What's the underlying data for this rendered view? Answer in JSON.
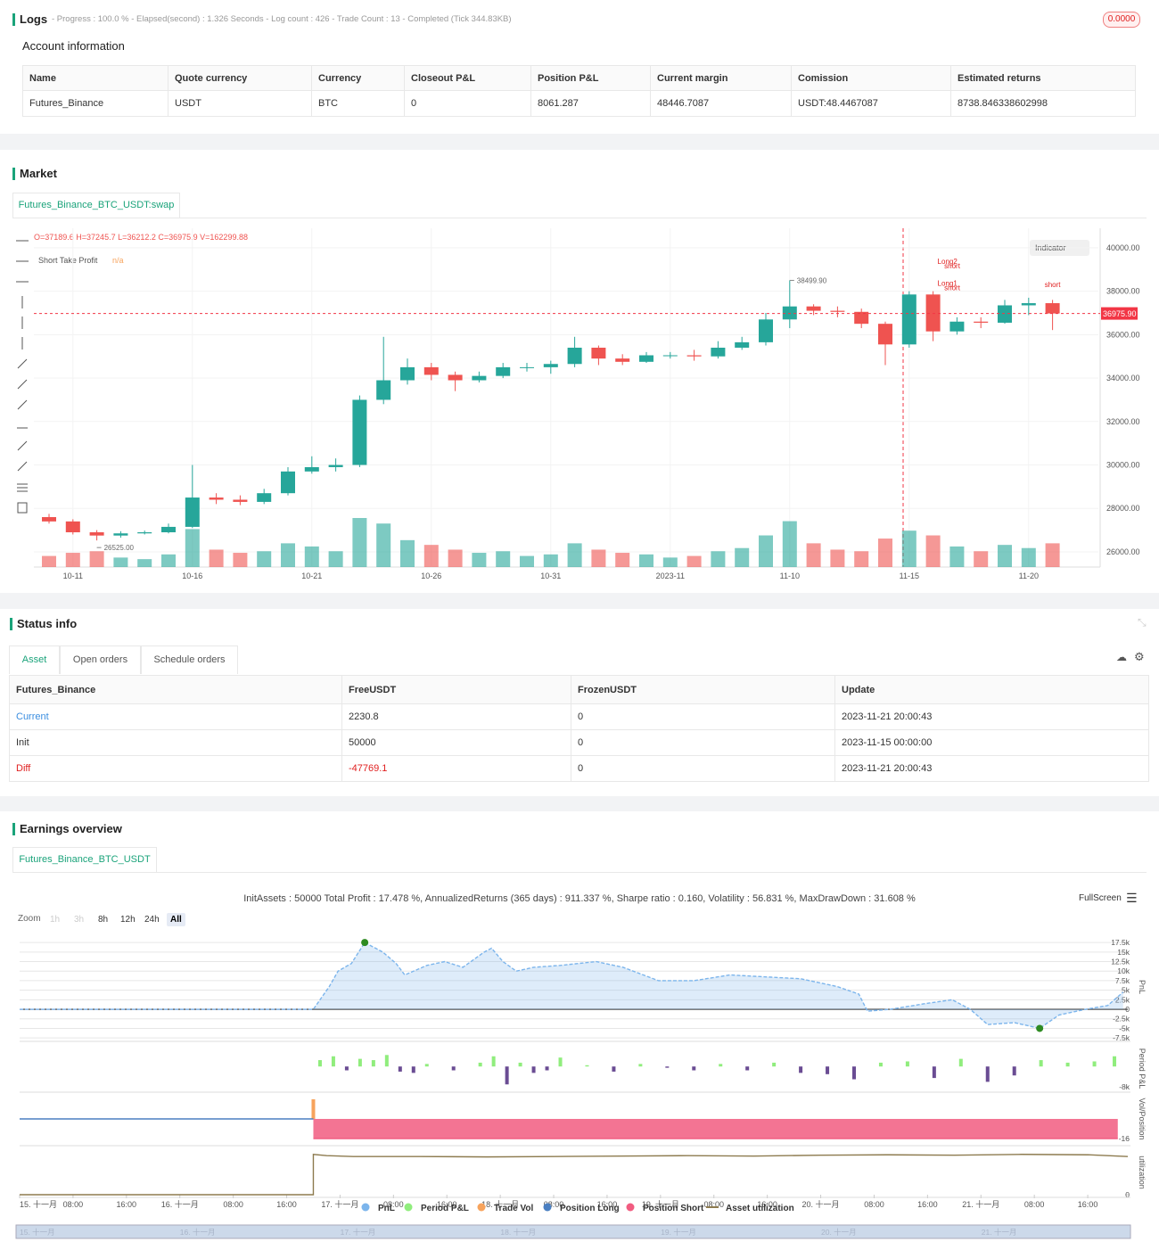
{
  "logs": {
    "title": "Logs",
    "summary": "- Progress : 100.0 % - Elapsed(second) : 1.326  Seconds - Log count : 426 - Trade Count : 13 - Completed (Tick 344.83KB)",
    "badge": "0.0000"
  },
  "account": {
    "title": "Account information",
    "table": {
      "header": [
        "Name",
        "Quote currency",
        "Currency",
        "Closeout P&L",
        "Position P&L",
        "Current margin",
        "Comission",
        "Estimated returns"
      ],
      "rows": [
        [
          "Futures_Binance",
          "USDT",
          "BTC",
          "0",
          "8061.287",
          "48446.7087",
          "USDT:48.4467087",
          "8738.846338602998"
        ]
      ]
    }
  },
  "market": {
    "title": "Market",
    "tab": "Futures_Binance_BTC_USDT:swap"
  },
  "status": {
    "title": "Status info",
    "tabs": [
      "Asset",
      "Open orders",
      "Schedule orders"
    ],
    "table": {
      "header": [
        "Futures_Binance",
        "FreeUSDT",
        "FrozenUSDT",
        "Update"
      ],
      "rows": [
        [
          "Current",
          "2230.8",
          "0",
          "2023-11-21 20:00:43"
        ],
        [
          "Init",
          "50000",
          "0",
          "2023-11-15 00:00:00"
        ],
        [
          "Diff",
          "-47769.1",
          "0",
          "2023-11-21 20:00:43"
        ]
      ]
    }
  },
  "earnings": {
    "title": "Earnings overview",
    "tab": "Futures_Binance_BTC_USDT",
    "zoom_label": "Zoom",
    "zoom_buttons": [
      "1h",
      "3h",
      "8h",
      "12h",
      "24h",
      "All"
    ],
    "fullscreen": "FullScreen"
  },
  "chart_data": [
    {
      "type": "candlestick",
      "legend_text": "O=37189.6 H=37245.7 L=36212.2 C=36975.9 V=162299.88",
      "indicator_name": "Short Take Profit",
      "indicator_value": "n/a",
      "indicator_button": "Indicator",
      "categories": [
        null,
        "10-11",
        null,
        null,
        null,
        null,
        "10-16",
        null,
        null,
        null,
        null,
        "10-21",
        null,
        null,
        null,
        null,
        "10-26",
        null,
        null,
        null,
        null,
        "10-31",
        null,
        null,
        null,
        null,
        "2023-11",
        null,
        null,
        null,
        null,
        "11-10",
        null,
        null,
        null,
        null,
        "11-15",
        null,
        null,
        null,
        null,
        "11-20",
        null
      ],
      "open": [
        27600,
        27400,
        26900,
        26750,
        26850,
        26900,
        27150,
        28500,
        28400,
        28300,
        28700,
        29700,
        29900,
        30000,
        33000,
        33900,
        34500,
        34150,
        33900,
        34100,
        34500,
        34500,
        34650,
        35400,
        34900,
        34750,
        35050,
        35050,
        35000,
        35400,
        35650,
        36700,
        37300,
        37100,
        37050,
        36500,
        35550,
        37850,
        36150,
        36600,
        36550,
        37350,
        37450
      ],
      "high": [
        27750,
        27500,
        27000,
        26950,
        26980,
        27300,
        30000,
        28700,
        28600,
        28900,
        29900,
        30400,
        30300,
        33200,
        35900,
        34900,
        34700,
        34300,
        34300,
        34700,
        34700,
        34800,
        35900,
        35500,
        35100,
        35200,
        35200,
        35300,
        35700,
        35900,
        37000,
        38499.9,
        37400,
        37300,
        37200,
        36600,
        38000,
        38000,
        36800,
        36800,
        37600,
        37700,
        37600
      ],
      "low": [
        27300,
        26800,
        26525,
        26650,
        26800,
        26850,
        27100,
        28200,
        28150,
        28200,
        28600,
        29600,
        29700,
        29900,
        32800,
        33700,
        33900,
        33400,
        33800,
        34000,
        34300,
        34200,
        34500,
        34600,
        34600,
        34700,
        34900,
        34800,
        34900,
        35300,
        35500,
        36300,
        36900,
        36800,
        36300,
        34600,
        35400,
        35700,
        36000,
        36300,
        36500,
        36900,
        36212.2
      ],
      "close": [
        27400,
        26900,
        26750,
        26850,
        26900,
        27150,
        28500,
        28400,
        28300,
        28700,
        29700,
        29900,
        30000,
        33000,
        33900,
        34500,
        34150,
        33900,
        34100,
        34500,
        34500,
        34650,
        35400,
        34900,
        34750,
        35050,
        35050,
        35000,
        35400,
        35650,
        36700,
        37300,
        37100,
        37050,
        36500,
        35550,
        37850,
        36150,
        36600,
        36550,
        37350,
        37450,
        36975.9
      ],
      "volume": [
        14,
        18,
        20,
        12,
        10,
        16,
        48,
        22,
        18,
        20,
        30,
        26,
        20,
        62,
        55,
        34,
        28,
        22,
        18,
        20,
        14,
        16,
        30,
        22,
        18,
        16,
        12,
        14,
        20,
        24,
        40,
        58,
        30,
        22,
        20,
        36,
        46,
        40,
        26,
        20,
        28,
        24,
        30
      ],
      "up_color": "#26a69a",
      "down_color": "#ef5350",
      "ylim": [
        25300,
        40900
      ],
      "yticks": [
        {
          "value": 26000,
          "label": "26000.00"
        },
        {
          "value": 28000,
          "label": "28000.00"
        },
        {
          "value": 30000,
          "label": "30000.00"
        },
        {
          "value": 32000,
          "label": "32000.00"
        },
        {
          "value": 34000,
          "label": "34000.00"
        },
        {
          "value": 36000,
          "label": "36000.00"
        },
        {
          "value": 38000,
          "label": "38000.00"
        },
        {
          "value": 40000,
          "label": "40000.00"
        }
      ],
      "price_line": {
        "value": 36975.9,
        "label": "36975.90",
        "color": "#f23645"
      },
      "annotations": [
        {
          "index": 31,
          "value": 38499.9,
          "label": "38499.90"
        },
        {
          "index": 2,
          "value": 26525,
          "label": "26525.00"
        }
      ],
      "trade_labels": [
        {
          "index": 37.6,
          "value": 39250,
          "label": "Long2"
        },
        {
          "index": 37.8,
          "value": 39050,
          "label": "short"
        },
        {
          "index": 37.6,
          "value": 38250,
          "label": "Long1"
        },
        {
          "index": 37.8,
          "value": 38050,
          "label": "short"
        },
        {
          "index": 42,
          "value": 38200,
          "label": "short"
        }
      ]
    },
    {
      "type": "multi-pane",
      "title": "InitAssets : 50000 Total Profit : 17.478 %, AnnualizedReturns (365 days) : 911.337 %, Sharpe ratio : 0.160, Volatility : 56.831 %, MaxDrawDown : 31.608 %",
      "xlim": [
        0,
        166
      ],
      "xticks": [
        {
          "value": 0,
          "label": "15. 十一月"
        },
        {
          "value": 8,
          "label": "08:00"
        },
        {
          "value": 16,
          "label": "16:00"
        },
        {
          "value": 24,
          "label": "16. 十一月"
        },
        {
          "value": 32,
          "label": "08:00"
        },
        {
          "value": 40,
          "label": "16:00"
        },
        {
          "value": 48,
          "label": "17. 十一月"
        },
        {
          "value": 56,
          "label": "08:00"
        },
        {
          "value": 64,
          "label": "16:00"
        },
        {
          "value": 72,
          "label": "18. 十一月"
        },
        {
          "value": 80,
          "label": "08:00"
        },
        {
          "value": 88,
          "label": "16:00"
        },
        {
          "value": 96,
          "label": "19. 十一月"
        },
        {
          "value": 104,
          "label": "08:00"
        },
        {
          "value": 112,
          "label": "16:00"
        },
        {
          "value": 120,
          "label": "20. 十一月"
        },
        {
          "value": 128,
          "label": "08:00"
        },
        {
          "value": 136,
          "label": "16:00"
        },
        {
          "value": 144,
          "label": "21. 十一月"
        },
        {
          "value": 152,
          "label": "08:00"
        },
        {
          "value": 160,
          "label": "16:00"
        }
      ],
      "ylim": [
        -7700,
        19400
      ],
      "yticks": [
        {
          "value": 17500,
          "label": "17.5k"
        },
        {
          "value": 15000,
          "label": "15k"
        },
        {
          "value": 12500,
          "label": "12.5k"
        },
        {
          "value": 10000,
          "label": "10k"
        },
        {
          "value": 7500,
          "label": "7.5k"
        },
        {
          "value": 5000,
          "label": "5k"
        },
        {
          "value": 2500,
          "label": "2.5k"
        },
        0,
        {
          "value": -2500,
          "label": "-2.5k"
        },
        {
          "value": -5000,
          "label": "-5k"
        },
        {
          "value": -7500,
          "label": "-7.5k"
        }
      ],
      "y2lim": [
        -9000,
        7400
      ],
      "y2ticks": [
        {
          "value": -8000,
          "label": "-8k"
        }
      ],
      "y3lim": [
        -19.6,
        19.6
      ],
      "y3ticks": [
        -16
      ],
      "y4lim": [
        0,
        1.05
      ],
      "y4ticks": [
        0
      ],
      "axis_titles": [
        "PnL",
        "Period P&L",
        "Vol/Position",
        "utilization"
      ],
      "series": [
        {
          "name": "PnL",
          "color": "#7cb5ec",
          "kind": "area",
          "axis": "y",
          "x": [
            0,
            44,
            46.4,
            47.7,
            49.7,
            51.7,
            54.4,
            56.4,
            57.7,
            61,
            63.7,
            66.4,
            69.6,
            70.7,
            72.4,
            74.4,
            77,
            81,
            86.4,
            90.4,
            95.7,
            101,
            106.4,
            111.7,
            117,
            122.4,
            125.7,
            127,
            130.4,
            135.7,
            139.7,
            142.4,
            145,
            149,
            152.8,
            155.7,
            159.7,
            163,
            165.3
          ],
          "values": [
            0,
            0,
            6000,
            10000,
            12000,
            17500,
            15000,
            12000,
            9000,
            11500,
            12500,
            11000,
            15000,
            16000,
            12500,
            10000,
            11000,
            11500,
            12500,
            11000,
            7500,
            7500,
            9000,
            8500,
            8000,
            6000,
            4000,
            -500,
            0,
            1500,
            2500,
            0,
            -4000,
            -3500,
            -5000,
            -1500,
            0,
            1000,
            4500
          ]
        },
        {
          "name": "Period P&L",
          "color": "#90ed7d",
          "negative_color": "#6a4c93",
          "kind": "bar",
          "axis": "y2",
          "x": [
            45,
            47,
            49,
            51,
            53,
            55,
            57,
            59,
            61,
            65,
            69,
            71,
            73,
            75,
            77,
            79,
            81,
            85,
            89,
            93,
            97,
            101,
            105,
            109,
            113,
            117,
            121,
            125,
            129,
            133,
            137,
            141,
            145,
            149,
            153,
            157,
            161,
            164
          ],
          "values": [
            2500,
            4000,
            -1500,
            3000,
            2500,
            4500,
            -2000,
            -2500,
            1000,
            -1500,
            1500,
            4000,
            -7000,
            1500,
            -2500,
            -1500,
            3500,
            500,
            -2000,
            1000,
            -500,
            -1500,
            1000,
            -1500,
            1500,
            -2500,
            -3000,
            -5000,
            1500,
            2000,
            -4500,
            3000,
            -6000,
            -3500,
            2500,
            1500,
            2000,
            4000
          ]
        },
        {
          "name": "Trade Vol",
          "color": "#f7a35c",
          "kind": "bar",
          "axis": "y3",
          "x": [
            44
          ],
          "values": [
            16
          ]
        },
        {
          "name": "Position Long",
          "color": "#4a7fc1",
          "kind": "line",
          "axis": "y3",
          "x": [
            0,
            44
          ],
          "values": [
            0,
            0
          ]
        },
        {
          "name": "Position Short",
          "color": "#f15c80",
          "kind": "area",
          "axis": "y3",
          "x": [
            44,
            164.5
          ],
          "values": [
            -16,
            -16
          ]
        },
        {
          "name": "Asset utilization",
          "color": "#8d7b4f",
          "kind": "line",
          "axis": "y4",
          "x": [
            0,
            44,
            44,
            46,
            50,
            60,
            70,
            80,
            90,
            100,
            110,
            120,
            130,
            140,
            150,
            160,
            166
          ],
          "values": [
            0,
            0,
            0.95,
            0.92,
            0.9,
            0.9,
            0.89,
            0.9,
            0.91,
            0.92,
            0.91,
            0.93,
            0.94,
            0.93,
            0.95,
            0.94,
            0.9
          ]
        }
      ],
      "navigator_labels": [
        "15. 十一月",
        "16. 十一月",
        "17. 十一月",
        "18. 十一月",
        "19. 十一月",
        "20. 十一月",
        "21. 十一月"
      ]
    }
  ]
}
